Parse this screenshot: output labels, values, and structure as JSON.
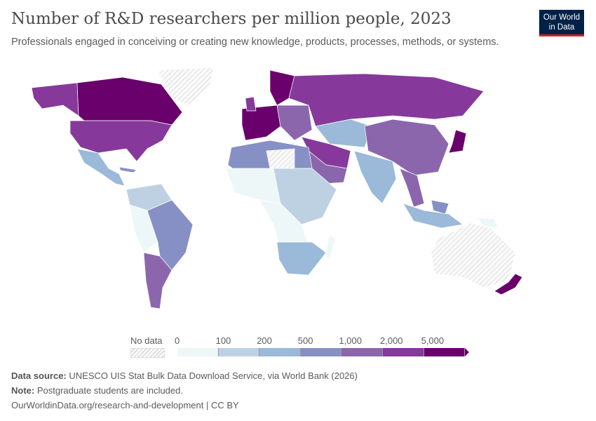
{
  "header": {
    "title": "Number of R&D researchers per million people, 2023",
    "subtitle": "Professionals engaged in conceiving or creating new knowledge, products, processes, methods, or systems.",
    "logo_text": "Our World in Data"
  },
  "legend": {
    "no_data_label": "No data",
    "ticks": [
      "0",
      "100",
      "200",
      "500",
      "1,000",
      "2,000",
      "5,000"
    ],
    "colors": [
      "#eef7f8",
      "#bed1e3",
      "#9bb9d8",
      "#8690c4",
      "#8c66ad",
      "#86399a",
      "#6a006b"
    ],
    "no_data_color": "#e6e6e6"
  },
  "footer": {
    "source_label": "Data source:",
    "source_text": "UNESCO UIS Stat Bulk Data Download Service, via World Bank (2026)",
    "note_label": "Note:",
    "note_text": "Postgraduate students are included.",
    "url": "OurWorldinData.org/research-and-development | CC BY"
  }
}
